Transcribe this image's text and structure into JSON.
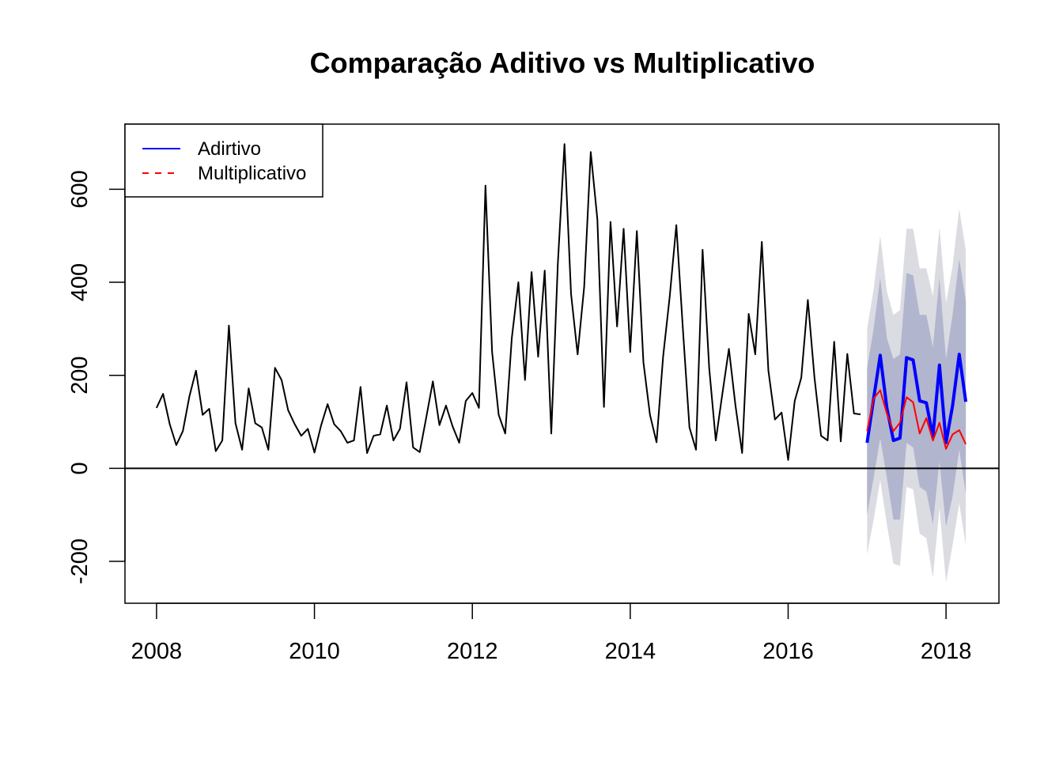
{
  "chart_data": {
    "type": "line",
    "title": "Comparação Aditivo vs Multiplicativo",
    "xlabel": "",
    "ylabel": "",
    "xlim": [
      2007.6,
      2018.67
    ],
    "ylim": [
      -290,
      740
    ],
    "x_ticks": [
      "2008",
      "2010",
      "2012",
      "2014",
      "2016",
      "2018"
    ],
    "y_ticks": [
      "-200",
      "0",
      "200",
      "400",
      "600"
    ],
    "reference_line_y": 0,
    "legend": {
      "placement": "top-left",
      "entries": [
        {
          "label": "Adirtivo",
          "color": "#0000ff",
          "style": "solid"
        },
        {
          "label": "Multiplicativo",
          "color": "#ff0000",
          "style": "dashed"
        }
      ]
    },
    "series": [
      {
        "color": "#000000",
        "start": 2008.0,
        "step": 0.0833333,
        "values": [
          130,
          160,
          95,
          50,
          80,
          155,
          210,
          115,
          128,
          37,
          60,
          307,
          97,
          40,
          172,
          97,
          88,
          40,
          216,
          190,
          125,
          95,
          70,
          85,
          34,
          92,
          138,
          95,
          80,
          55,
          60,
          175,
          33,
          70,
          73,
          135,
          60,
          85,
          185,
          45,
          35,
          110,
          187,
          93,
          135,
          90,
          55,
          145,
          162,
          130,
          608,
          250,
          115,
          75,
          280,
          400,
          190,
          422,
          240,
          425,
          75,
          440,
          697,
          375,
          245,
          390,
          680,
          535,
          132,
          530,
          305,
          515,
          250,
          510,
          228,
          115,
          56,
          240,
          370,
          523,
          300,
          88,
          40,
          470,
          215,
          60,
          160,
          257,
          135,
          33,
          332,
          245,
          487,
          210,
          105,
          120,
          18,
          145,
          195,
          362,
          195,
          70,
          60,
          272,
          58,
          246,
          118,
          116
        ]
      },
      {
        "name": "Adirtivo",
        "color": "#0000ff",
        "start": 2017.0,
        "step": 0.0833333,
        "values": [
          55,
          150,
          243,
          130,
          60,
          65,
          238,
          233,
          145,
          141,
          68,
          222,
          55,
          135,
          245,
          143
        ]
      },
      {
        "name": "Multiplicativo",
        "color": "#ff0000",
        "start": 2017.0,
        "step": 0.0833333,
        "values": [
          80,
          150,
          168,
          118,
          80,
          98,
          153,
          142,
          75,
          108,
          60,
          98,
          42,
          73,
          82,
          52
        ]
      }
    ],
    "intervals": {
      "start": 2017.0,
      "step": 0.0833333,
      "lo80": [
        -100,
        -20,
        65,
        -20,
        -110,
        -110,
        55,
        45,
        -40,
        -50,
        -120,
        15,
        -125,
        -60,
        40,
        -55
      ],
      "hi80": [
        215,
        300,
        410,
        280,
        235,
        245,
        420,
        415,
        330,
        330,
        260,
        410,
        235,
        330,
        450,
        360
      ],
      "lo95": [
        -185,
        -110,
        -25,
        -120,
        -205,
        -210,
        -40,
        -45,
        -140,
        -150,
        -235,
        -85,
        -245,
        -165,
        -75,
        -165
      ],
      "hi95": [
        300,
        385,
        500,
        380,
        330,
        340,
        515,
        515,
        430,
        430,
        370,
        518,
        355,
        435,
        558,
        468
      ],
      "color80": "#b1b5ce",
      "color95": "#dbdbe2"
    }
  }
}
